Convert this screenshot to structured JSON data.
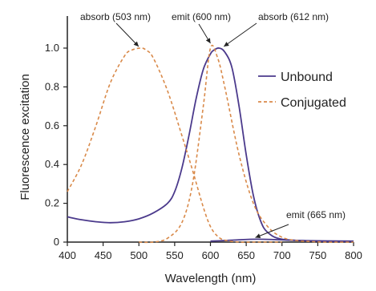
{
  "chart_data": {
    "type": "line",
    "title": "",
    "xlabel": "Wavelength (nm)",
    "ylabel": "Fluorescence excitation",
    "xlim": [
      400,
      800
    ],
    "ylim": [
      0,
      1.1
    ],
    "xticks": [
      400,
      450,
      500,
      550,
      600,
      650,
      700,
      750,
      800
    ],
    "yticks": [
      0,
      0.2,
      0.4,
      0.6,
      0.8,
      1.0
    ],
    "ytick_labels": [
      "0",
      "0.2",
      "0.4",
      "0.6",
      "0.8",
      "1.0"
    ],
    "grid": false,
    "legend_position": "right",
    "series": [
      {
        "name": "Unbound",
        "style": "solid",
        "color": "#4b3a8c",
        "x": [
          400,
          420,
          440,
          460,
          480,
          500,
          520,
          540,
          550,
          560,
          570,
          580,
          590,
          600,
          605,
          612,
          620,
          630,
          640,
          650,
          660,
          670,
          680,
          700,
          750,
          800
        ],
        "y": [
          0.13,
          0.115,
          0.105,
          0.1,
          0.105,
          0.12,
          0.15,
          0.2,
          0.26,
          0.38,
          0.55,
          0.74,
          0.89,
          0.97,
          0.99,
          1.0,
          0.98,
          0.9,
          0.7,
          0.45,
          0.24,
          0.11,
          0.05,
          0.015,
          0.005,
          0.003
        ]
      },
      {
        "name": "Unbound",
        "style": "solid",
        "color": "#4b3a8c",
        "x": [
          600,
          620,
          640,
          665,
          690,
          710,
          730,
          760,
          800
        ],
        "y": [
          0.005,
          0.008,
          0.012,
          0.015,
          0.013,
          0.01,
          0.008,
          0.006,
          0.005
        ]
      },
      {
        "name": "Conjugated",
        "style": "dashed",
        "color": "#d98a4a",
        "x": [
          400,
          420,
          440,
          460,
          480,
          490,
          503,
          510,
          520,
          540,
          560,
          575,
          590,
          600,
          610,
          620,
          640,
          660,
          680,
          700
        ],
        "y": [
          0.26,
          0.4,
          0.6,
          0.82,
          0.96,
          0.99,
          1.0,
          0.99,
          0.95,
          0.78,
          0.55,
          0.37,
          0.18,
          0.08,
          0.03,
          0.01,
          0.0,
          0.0,
          0.0,
          0.0
        ]
      },
      {
        "name": "Conjugated",
        "style": "dashed",
        "color": "#d98a4a",
        "x": [
          500,
          520,
          540,
          560,
          575,
          590,
          600,
          610,
          620,
          640,
          660,
          680,
          700,
          720,
          740,
          760,
          780,
          800
        ],
        "y": [
          0.0,
          0.0,
          0.02,
          0.1,
          0.3,
          0.7,
          1.0,
          0.95,
          0.8,
          0.45,
          0.2,
          0.08,
          0.025,
          0.008,
          0.003,
          0.0,
          0.0,
          0.0
        ]
      }
    ],
    "legend": [
      {
        "label": "Unbound",
        "style": "solid",
        "color": "#4b3a8c"
      },
      {
        "label": "Conjugated",
        "style": "dashed",
        "color": "#d98a4a"
      }
    ],
    "annotations": [
      {
        "text": "absorb (503 nm)",
        "target_x": 503,
        "target_y": 1.0
      },
      {
        "text": "emit (600 nm)",
        "target_x": 600,
        "target_y": 1.0
      },
      {
        "text": "absorb (612 nm)",
        "target_x": 612,
        "target_y": 1.0
      },
      {
        "text": "emit (665 nm)",
        "target_x": 665,
        "target_y": 0.015
      }
    ]
  }
}
